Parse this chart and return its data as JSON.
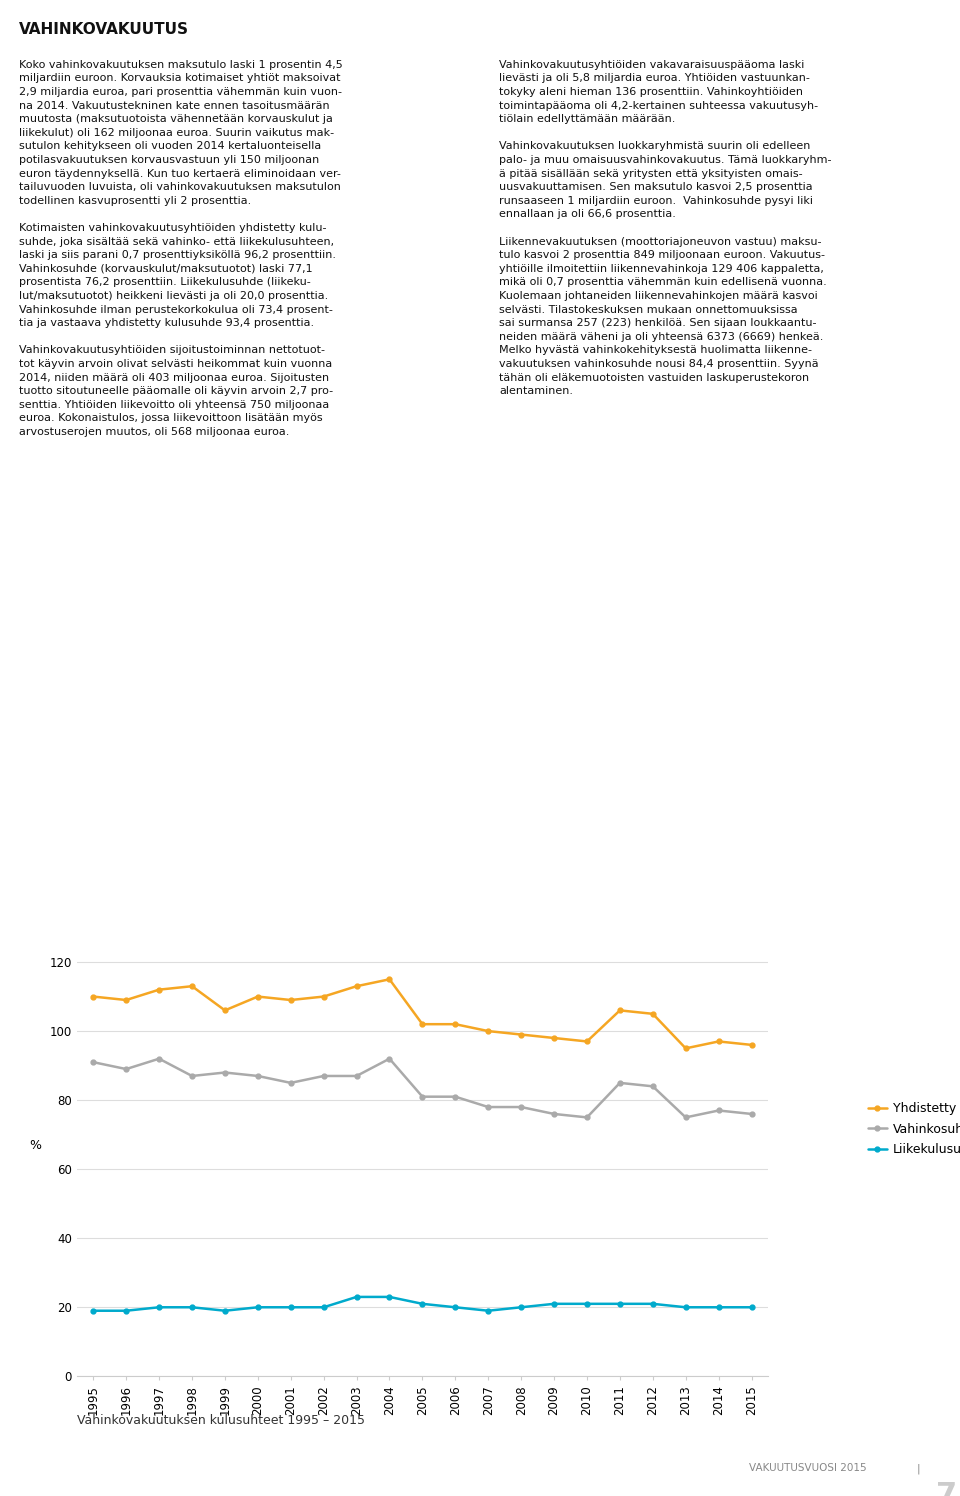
{
  "years": [
    1995,
    1996,
    1997,
    1998,
    1999,
    2000,
    2001,
    2002,
    2003,
    2004,
    2005,
    2006,
    2007,
    2008,
    2009,
    2010,
    2011,
    2012,
    2013,
    2014,
    2015
  ],
  "yhdistetty": [
    110,
    109,
    112,
    113,
    106,
    110,
    109,
    110,
    113,
    115,
    102,
    102,
    100,
    99,
    98,
    97,
    106,
    105,
    95,
    97,
    96
  ],
  "vahinkosuhde": [
    91,
    89,
    92,
    87,
    88,
    87,
    85,
    87,
    87,
    92,
    81,
    81,
    78,
    78,
    76,
    75,
    85,
    84,
    75,
    77,
    76
  ],
  "liikekulusuhde": [
    19,
    19,
    20,
    20,
    19,
    20,
    20,
    20,
    23,
    23,
    21,
    20,
    19,
    20,
    21,
    21,
    21,
    21,
    20,
    20,
    20
  ],
  "yhdistetty_color": "#F5A623",
  "vahinkosuhde_color": "#AAAAAA",
  "liikekulusuhde_color": "#00AACC",
  "title": "",
  "xlabel": "",
  "ylabel": "%",
  "ylim": [
    0,
    130
  ],
  "yticks": [
    0,
    20,
    40,
    60,
    80,
    100,
    120
  ],
  "legend_labels": [
    "Yhdistetty kulusuhde",
    "Vahinkosuhde",
    "Liikekulusuhde"
  ],
  "caption": "Vahinkovakuutuksen kulusuhteet 1995 – 2015",
  "grid_color": "#DDDDDD",
  "background_color": "#FFFFFF",
  "line_width": 1.8,
  "marker_size": 0,
  "caption_fontsize": 9,
  "axis_fontsize": 8.5,
  "legend_fontsize": 9,
  "ylabel_fontsize": 9
}
